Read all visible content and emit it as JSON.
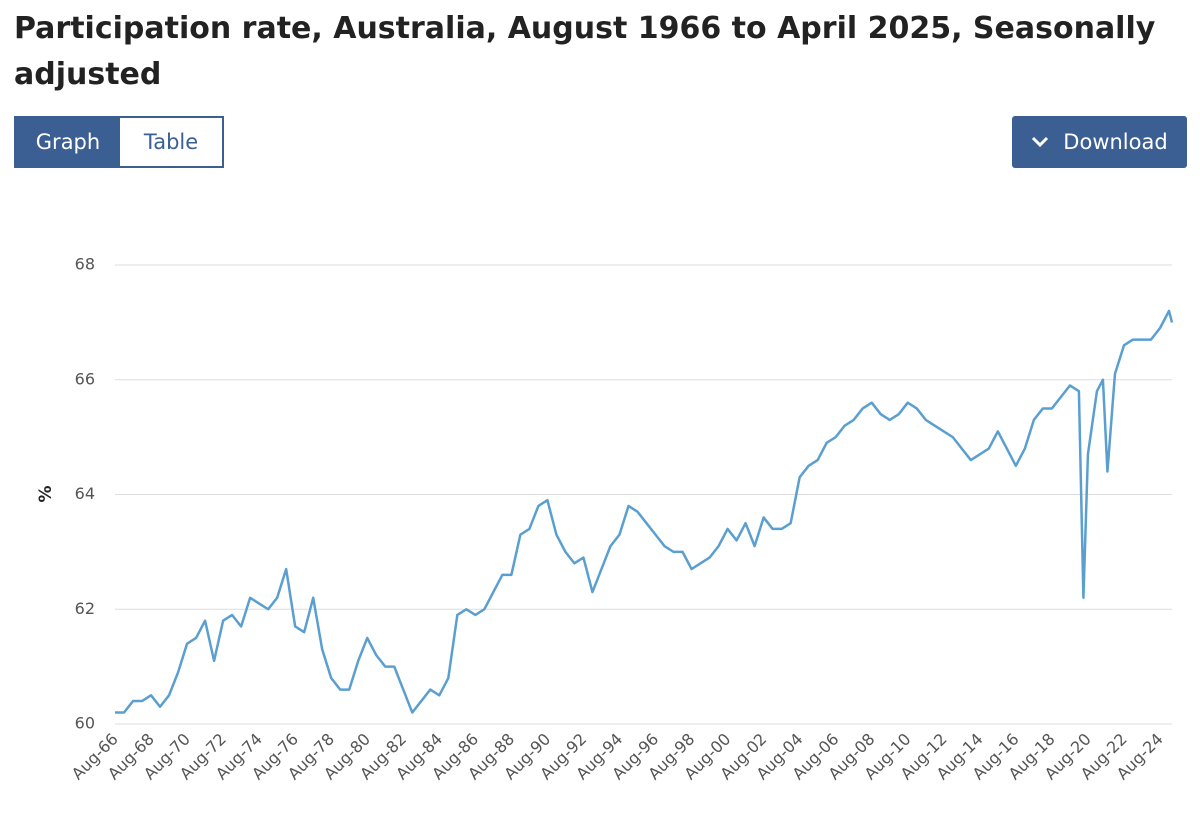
{
  "header": {
    "title": "Participation rate, Australia, August 1966 to April 2025, Seasonally adjusted"
  },
  "tabs": [
    "Graph",
    "Table"
  ],
  "download": "Download",
  "chart_data": {
    "type": "line",
    "ylabel": "%",
    "color": "#5a9fd0",
    "ylim": [
      60,
      68
    ],
    "yticks": [
      60,
      62,
      64,
      66,
      68
    ],
    "grid": true,
    "xticks": [
      "Aug-66",
      "Aug-68",
      "Aug-70",
      "Aug-72",
      "Aug-74",
      "Aug-76",
      "Aug-78",
      "Aug-80",
      "Aug-82",
      "Aug-84",
      "Aug-86",
      "Aug-88",
      "Aug-90",
      "Aug-92",
      "Aug-94",
      "Aug-96",
      "Aug-98",
      "Aug-00",
      "Aug-02",
      "Aug-04",
      "Aug-06",
      "Aug-08",
      "Aug-10",
      "Aug-12",
      "Aug-14",
      "Aug-16",
      "Aug-18",
      "Aug-20",
      "Aug-22",
      "Aug-24"
    ],
    "x": [
      "Aug-66",
      "Feb-67",
      "Aug-67",
      "Feb-68",
      "Aug-68",
      "Feb-69",
      "Aug-69",
      "Feb-70",
      "Aug-70",
      "Feb-71",
      "Aug-71",
      "Feb-72",
      "Aug-72",
      "Feb-73",
      "Aug-73",
      "Feb-74",
      "Aug-74",
      "Feb-75",
      "Aug-75",
      "Feb-76",
      "Aug-76",
      "Feb-77",
      "Aug-77",
      "Feb-78",
      "Aug-78",
      "Feb-79",
      "Aug-79",
      "Feb-80",
      "Aug-80",
      "Feb-81",
      "Aug-81",
      "Feb-82",
      "Aug-82",
      "Feb-83",
      "Aug-83",
      "Feb-84",
      "Aug-84",
      "Feb-85",
      "Aug-85",
      "Feb-86",
      "Aug-86",
      "Feb-87",
      "Aug-87",
      "Feb-88",
      "Aug-88",
      "Feb-89",
      "Aug-89",
      "Feb-90",
      "Aug-90",
      "Feb-91",
      "Aug-91",
      "Feb-92",
      "Aug-92",
      "Feb-93",
      "Aug-93",
      "Feb-94",
      "Aug-94",
      "Feb-95",
      "Aug-95",
      "Feb-96",
      "Aug-96",
      "Feb-97",
      "Aug-97",
      "Feb-98",
      "Aug-98",
      "Feb-99",
      "Aug-99",
      "Feb-00",
      "Aug-00",
      "Feb-01",
      "Aug-01",
      "Feb-02",
      "Aug-02",
      "Feb-03",
      "Aug-03",
      "Feb-04",
      "Aug-04",
      "Feb-05",
      "Aug-05",
      "Feb-06",
      "Aug-06",
      "Feb-07",
      "Aug-07",
      "Feb-08",
      "Aug-08",
      "Feb-09",
      "Aug-09",
      "Feb-10",
      "Aug-10",
      "Feb-11",
      "Aug-11",
      "Feb-12",
      "Aug-12",
      "Feb-13",
      "Aug-13",
      "Feb-14",
      "Aug-14",
      "Feb-15",
      "Aug-15",
      "Feb-16",
      "Aug-16",
      "Feb-17",
      "Aug-17",
      "Feb-18",
      "Aug-18",
      "Feb-19",
      "Aug-19",
      "Feb-20",
      "May-20",
      "Aug-20",
      "Feb-21",
      "Jun-21",
      "Sep-21",
      "Feb-22",
      "Aug-22",
      "Feb-23",
      "Aug-23",
      "Feb-24",
      "Aug-24",
      "Feb-25",
      "Apr-25"
    ],
    "values": [
      60.2,
      60.2,
      60.4,
      60.4,
      60.5,
      60.3,
      60.5,
      60.9,
      61.4,
      61.5,
      61.8,
      61.1,
      61.8,
      61.9,
      61.7,
      62.2,
      62.1,
      62.0,
      62.2,
      62.7,
      61.7,
      61.6,
      62.2,
      61.3,
      60.8,
      60.6,
      60.6,
      61.1,
      61.5,
      61.2,
      61.0,
      61.0,
      60.6,
      60.2,
      60.4,
      60.6,
      60.5,
      60.8,
      61.9,
      62.0,
      61.9,
      62.0,
      62.3,
      62.6,
      62.6,
      63.3,
      63.4,
      63.8,
      63.9,
      63.3,
      63.0,
      62.8,
      62.9,
      62.3,
      62.7,
      63.1,
      63.3,
      63.8,
      63.7,
      63.5,
      63.3,
      63.1,
      63.0,
      63.0,
      62.7,
      62.8,
      62.9,
      63.1,
      63.4,
      63.2,
      63.5,
      63.1,
      63.6,
      63.4,
      63.4,
      63.5,
      64.3,
      64.5,
      64.6,
      64.9,
      65.0,
      65.2,
      65.3,
      65.5,
      65.6,
      65.4,
      65.3,
      65.4,
      65.6,
      65.5,
      65.3,
      65.2,
      65.1,
      65.0,
      64.8,
      64.6,
      64.7,
      64.8,
      65.1,
      64.8,
      64.5,
      64.8,
      65.3,
      65.5,
      65.5,
      65.7,
      65.9,
      65.8,
      62.2,
      64.7,
      65.8,
      66.0,
      64.4,
      66.1,
      66.6,
      66.7,
      66.7,
      66.7,
      66.9,
      67.2,
      67.0
    ]
  }
}
